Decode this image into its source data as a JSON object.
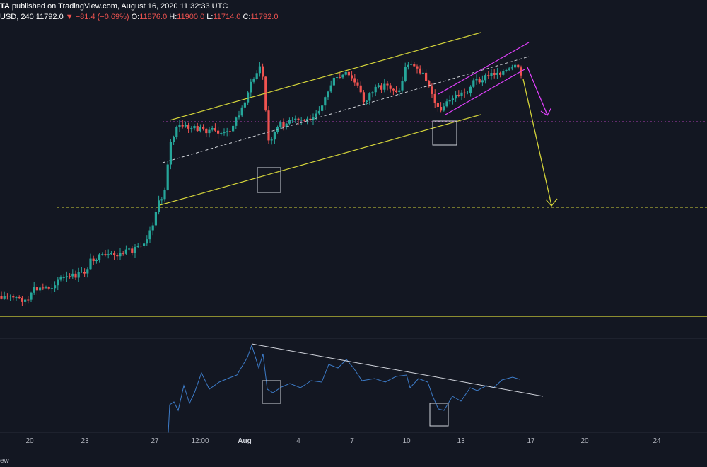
{
  "header": {
    "line1_prefix": "TA",
    "line1_rest": " published on TradingView.com, August 16, 2020 11:32:33 UTC",
    "symbol": "USD, 240",
    "price": "11792.0",
    "change": "▼ −81.4 (−0.69%)",
    "o_label": "O:",
    "o_value": "11876.0",
    "h_label": "H:",
    "h_value": "11900.0",
    "l_label": "L:",
    "l_value": "11714.0",
    "c_label": "C:",
    "c_value": "11792.0"
  },
  "footer": {
    "brand_fragment": "ew"
  },
  "colors": {
    "background": "#131722",
    "up": "#26a69a",
    "down": "#ef5350",
    "channel": "#d4d43a",
    "magenta": "#e040fb",
    "rsi": "#3d7cc9"
  },
  "chart_data": {
    "type": "candlestick",
    "x_tick_labels": [
      "20",
      "23",
      "27",
      "12:00",
      "Aug",
      "4",
      "7",
      "10",
      "13",
      "17",
      "20",
      "24"
    ],
    "last_close": 11792.0,
    "open": 11876.0,
    "high": 11900.0,
    "low": 11714.0,
    "close": 11792.0,
    "annotations": [
      "ascending channel",
      "rising wedge",
      "support line",
      "resistance trendline on oscillator",
      "highlight boxes",
      "projection arrows"
    ]
  }
}
